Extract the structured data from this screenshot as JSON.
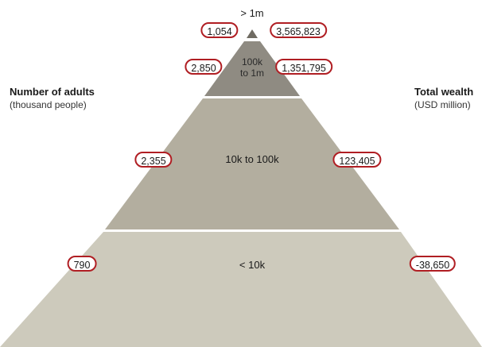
{
  "left_header": {
    "title": "Number of adults",
    "subtitle": "(thousand people)"
  },
  "right_header": {
    "title": "Total wealth",
    "subtitle": "(USD million)"
  },
  "tiers": [
    {
      "name": "> 1m",
      "adults": "1,054",
      "wealth": "3,565,823",
      "color": "#6f6b62"
    },
    {
      "name_line1": "100k",
      "name_line2": "to 1m",
      "adults": "2,850",
      "wealth": "1,351,795",
      "color": "#8f8b82"
    },
    {
      "name": "10k to 100k",
      "adults": "2,355",
      "wealth": "123,405",
      "color": "#b3ae9f"
    },
    {
      "name": "< 10k",
      "adults": "790",
      "wealth": "-38,650",
      "color": "#cdcabc"
    }
  ],
  "colors": {
    "pill_border": "#b01e23"
  }
}
